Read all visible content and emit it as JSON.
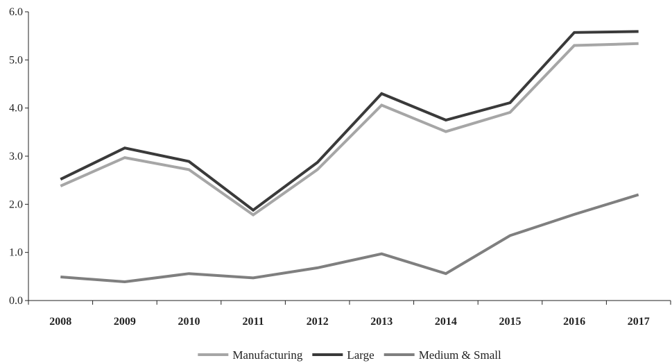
{
  "chart_data": {
    "type": "line",
    "categories": [
      "2008",
      "2009",
      "2010",
      "2011",
      "2012",
      "2013",
      "2014",
      "2015",
      "2016",
      "2017"
    ],
    "series": [
      {
        "name": "Manufacturing",
        "color": "#a6a6a6",
        "values": [
          2.38,
          2.97,
          2.72,
          1.78,
          2.72,
          4.06,
          3.51,
          3.91,
          5.3,
          5.34
        ]
      },
      {
        "name": "Large",
        "color": "#3a3a3a",
        "values": [
          2.52,
          3.17,
          2.89,
          1.88,
          2.87,
          4.3,
          3.75,
          4.11,
          5.57,
          5.59
        ]
      },
      {
        "name": "Medium & Small",
        "color": "#7f7f7f",
        "values": [
          0.49,
          0.39,
          0.56,
          0.47,
          0.68,
          0.97,
          0.56,
          1.35,
          1.79,
          2.2
        ]
      }
    ],
    "y_ticks": [
      "0.0",
      "1.0",
      "2.0",
      "3.0",
      "4.0",
      "5.0",
      "6.0"
    ],
    "ylim": [
      0,
      6
    ],
    "grid": false,
    "legend_position": "bottom"
  }
}
